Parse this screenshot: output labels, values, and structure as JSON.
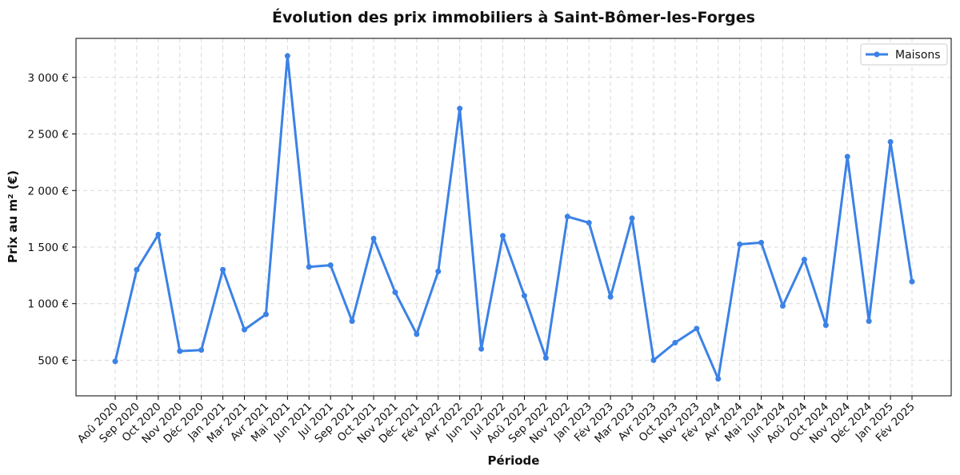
{
  "chart_data": {
    "type": "line",
    "title": "Évolution des prix immobiliers à Saint-Bômer-les-Forges",
    "xlabel": "Période",
    "ylabel": "Prix au m² (€)",
    "categories": [
      "Aoû 2020",
      "Sep 2020",
      "Oct 2020",
      "Nov 2020",
      "Déc 2020",
      "Jan 2021",
      "Mar 2021",
      "Avr 2021",
      "Mai 2021",
      "Jun 2021",
      "Jul 2021",
      "Sep 2021",
      "Oct 2021",
      "Nov 2021",
      "Déc 2021",
      "Fév 2022",
      "Avr 2022",
      "Jun 2022",
      "Jul 2022",
      "Aoû 2022",
      "Sep 2022",
      "Nov 2022",
      "Jan 2023",
      "Fév 2023",
      "Mar 2023",
      "Avr 2023",
      "Oct 2023",
      "Nov 2023",
      "Fév 2024",
      "Avr 2024",
      "Mai 2024",
      "Jun 2024",
      "Aoû 2024",
      "Oct 2024",
      "Nov 2024",
      "Déc 2024",
      "Jan 2025",
      "Fév 2025"
    ],
    "series": [
      {
        "name": "Maisons",
        "color": "#3b82e6",
        "values": [
          490,
          1300,
          1610,
          580,
          590,
          1300,
          770,
          905,
          3190,
          1325,
          1340,
          845,
          1575,
          1100,
          730,
          1285,
          2725,
          600,
          1600,
          1070,
          520,
          1770,
          1715,
          1060,
          1755,
          500,
          655,
          780,
          335,
          1525,
          1540,
          980,
          1390,
          810,
          2300,
          845,
          2430,
          1195
        ]
      }
    ],
    "ylim": [
      185,
      3345
    ],
    "yticks": [
      500,
      1000,
      1500,
      2000,
      2500,
      3000
    ],
    "ytick_labels": [
      "500 €",
      "1 000 €",
      "1 500 €",
      "2 000 €",
      "2 500 €",
      "3 000 €"
    ],
    "grid": true,
    "legend_position": "top-right"
  }
}
